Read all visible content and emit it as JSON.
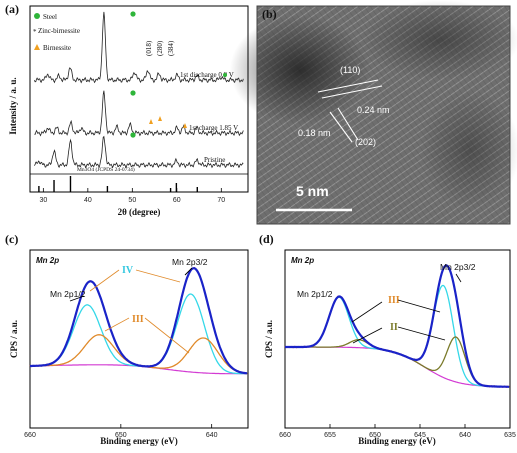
{
  "chart_data": [
    {
      "panel": "(a)",
      "type": "line",
      "xlabel": "2θ (degree)",
      "ylabel": "Intensity / a. u.",
      "xlim": [
        27,
        76
      ],
      "xticks": [
        "30",
        "40",
        "50",
        "60",
        "70"
      ],
      "legend": [
        {
          "label": "Steel",
          "marker": "circle",
          "color": "#2fb53a"
        },
        {
          "label": "Zinc-birnessite",
          "marker": "asterisk",
          "color": "#3a4fd0"
        },
        {
          "label": "Birnessite",
          "marker": "triangle",
          "color": "#f0a020"
        }
      ],
      "series": [
        {
          "name": "1st discharge 0.9 V",
          "peaks_2theta": [
            31,
            33.5,
            36,
            43.6,
            50.5,
            53.5,
            56,
            60,
            64.5,
            70
          ]
        },
        {
          "name": "1st charge 1.85 V",
          "peaks_2theta": [
            31,
            33,
            36.2,
            38.5,
            43.6,
            46.5,
            49.5,
            60,
            61.5,
            64.5
          ]
        },
        {
          "name": "Pristine",
          "peaks_2theta": [
            29,
            32.4,
            36.1,
            43.6,
            59.9,
            64.6
          ]
        }
      ],
      "reflections": [
        "(018)",
        "(280)",
        "(384)"
      ],
      "reference": {
        "name": "Mn3O4 (JCPDS 24-0734)",
        "positions_2theta": [
          29,
          32.4,
          36.1,
          44.4,
          58.6,
          59.9,
          64.6
        ]
      }
    },
    {
      "panel": "(c)",
      "type": "line",
      "title": "Mn 2p",
      "xlabel": "Binding energy (eV)",
      "ylabel": "CPS / a.u.",
      "xlim": [
        660,
        636
      ],
      "xticks": [
        "660",
        "650",
        "640"
      ],
      "peak_labels": [
        "Mn 2p1/2",
        "Mn 2p3/2",
        "IV",
        "III"
      ],
      "components": [
        {
          "name": "IV",
          "color": "#35d8e8",
          "centers_eV": [
            653.6,
            642.2
          ]
        },
        {
          "name": "III",
          "color": "#e08a2a",
          "centers_eV": [
            652.4,
            641.0
          ]
        }
      ],
      "envelope_peaks_eV": [
        653.5,
        641.9
      ]
    },
    {
      "panel": "(d)",
      "type": "line",
      "title": "Mn 2p",
      "xlabel": "Binding energy (eV)",
      "ylabel": "CPS / a.u.",
      "xlim": [
        660,
        635
      ],
      "xticks": [
        "660",
        "655",
        "650",
        "645",
        "640",
        "635"
      ],
      "peak_labels": [
        "Mn 2p1/2",
        "Mn 2p3/2",
        "III",
        "II"
      ],
      "components": [
        {
          "name": "III",
          "color": "#35d8e8",
          "centers_eV": [
            653.9,
            642.3
          ]
        },
        {
          "name": "II",
          "color": "#7a7a2a",
          "centers_eV": [
            651.7,
            640.9
          ]
        }
      ],
      "envelope_peaks_eV": [
        653.9,
        642.2
      ]
    }
  ],
  "panels": {
    "a": {
      "label": "(a)"
    },
    "b": {
      "label": "(b)",
      "lattice_1": "(110)",
      "spacing_1": "0.24 nm",
      "spacing_2": "0.18 nm",
      "lattice_2": "(202)",
      "scale_bar": "5 nm"
    },
    "c": {
      "label": "(c)"
    },
    "d": {
      "label": "(d)"
    }
  },
  "text": {
    "a_legend_steel": "Steel",
    "a_legend_zinc": "Zinc-birnessite",
    "a_legend_birn": "Birnessite",
    "a_curve_1": "1st discharge 0.9 V",
    "a_curve_2": "1st charge 1.85 V",
    "a_curve_3": "Pristine",
    "a_ref": "Mn3O4 (JCPDS 24-0734)",
    "a_018": "(018)",
    "a_280": "(280)",
    "a_384": "(384)",
    "a_ylabel": "Intensity / a. u.",
    "a_xlabel": "2θ (degree)",
    "c_title": "Mn 2p",
    "c_p12": "Mn 2p1/2",
    "c_p32": "Mn 2p3/2",
    "c_iv": "IV",
    "c_iii": "III",
    "c_ylabel": "CPS / a.u.",
    "c_xlabel": "Binding energy (eV)",
    "d_title": "Mn 2p",
    "d_p12": "Mn 2p1/2",
    "d_p32": "Mn 2p3/2",
    "d_iii": "III",
    "d_ii": "II",
    "d_ylabel": "CPS / a.u.",
    "d_xlabel": "Binding energy (eV)"
  },
  "colors": {
    "steel": "#2fb53a",
    "zinc": "#3a4fd0",
    "birn": "#f0a020",
    "envelope": "#1a23c8",
    "data": "#e02020",
    "cyan": "#35d8e8",
    "orange": "#e08a2a",
    "olive": "#7a7a2a",
    "background": "#d33bd3"
  }
}
